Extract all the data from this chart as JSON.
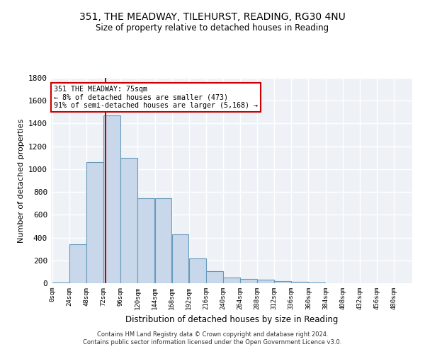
{
  "title_line1": "351, THE MEADWAY, TILEHURST, READING, RG30 4NU",
  "title_line2": "Size of property relative to detached houses in Reading",
  "xlabel": "Distribution of detached houses by size in Reading",
  "ylabel": "Number of detached properties",
  "bar_color": "#c8d8ea",
  "bar_edge_color": "#6699bb",
  "background_color": "#eef2f7",
  "grid_color": "#ffffff",
  "categories": [
    "0sqm",
    "24sqm",
    "48sqm",
    "72sqm",
    "96sqm",
    "120sqm",
    "144sqm",
    "168sqm",
    "192sqm",
    "216sqm",
    "240sqm",
    "264sqm",
    "288sqm",
    "312sqm",
    "336sqm",
    "360sqm",
    "384sqm",
    "408sqm",
    "432sqm",
    "456sqm",
    "480sqm"
  ],
  "values": [
    5,
    340,
    1060,
    1470,
    1100,
    745,
    745,
    430,
    220,
    105,
    50,
    40,
    30,
    18,
    10,
    5,
    3,
    2,
    0,
    0,
    0
  ],
  "property_label": "351 THE MEADWAY: 75sqm",
  "annotation_line2": "← 8% of detached houses are smaller (473)",
  "annotation_line3": "91% of semi-detached houses are larger (5,168) →",
  "annotation_box_color": "#ffffff",
  "annotation_box_edge": "#cc0000",
  "vline_color": "#cc0000",
  "vline_x": 75,
  "ylim": [
    0,
    1800
  ],
  "yticks": [
    0,
    200,
    400,
    600,
    800,
    1000,
    1200,
    1400,
    1600,
    1800
  ],
  "footer_line1": "Contains HM Land Registry data © Crown copyright and database right 2024.",
  "footer_line2": "Contains public sector information licensed under the Open Government Licence v3.0.",
  "bin_width": 24
}
